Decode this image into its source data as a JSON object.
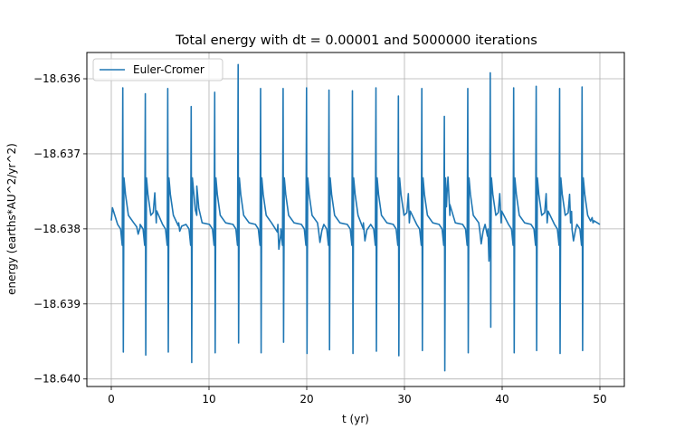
{
  "chart_data": {
    "type": "line",
    "title": "Total energy with dt = 0.00001 and 5000000 iterations",
    "xlabel": "t (yr)",
    "ylabel": "energy (earths*AU^2/yr^2)",
    "xlim": [
      -2.5,
      52.5
    ],
    "ylim": [
      -18.6401,
      -18.63565
    ],
    "xticks": [
      0,
      10,
      20,
      30,
      40,
      50
    ],
    "xtick_labels": [
      "0",
      "10",
      "20",
      "30",
      "40",
      "50"
    ],
    "yticks": [
      -18.636,
      -18.637,
      -18.638,
      -18.639,
      -18.64
    ],
    "ytick_labels": [
      "−18.636",
      "−18.637",
      "−18.638",
      "−18.639",
      "−18.640"
    ],
    "grid": true,
    "legend": {
      "location": "upper-left",
      "entries": [
        "Euler-Cromer"
      ]
    },
    "series": [
      {
        "name": "Euler-Cromer",
        "color": "#1f77b4",
        "x_start": 0,
        "x_end": 50,
        "start_value": -18.63789,
        "end_value": -18.63794,
        "baseline": -18.63792,
        "events": [
          {
            "t": 1.2,
            "max": -18.63612,
            "min": -18.63964
          },
          {
            "t": 3.5,
            "max": -18.6362,
            "min": -18.63968
          },
          {
            "t": 5.8,
            "max": -18.63613,
            "min": -18.63964
          },
          {
            "t": 8.2,
            "max": -18.63637,
            "min": -18.63978
          },
          {
            "t": 10.6,
            "max": -18.63618,
            "min": -18.63965
          },
          {
            "t": 13.0,
            "max": -18.63581,
            "min": -18.63952
          },
          {
            "t": 15.3,
            "max": -18.63613,
            "min": -18.63965
          },
          {
            "t": 17.6,
            "max": -18.63613,
            "min": -18.63951
          },
          {
            "t": 20.0,
            "max": -18.63612,
            "min": -18.63966
          },
          {
            "t": 22.3,
            "max": -18.63615,
            "min": -18.63961
          },
          {
            "t": 24.7,
            "max": -18.63616,
            "min": -18.63966
          },
          {
            "t": 27.1,
            "max": -18.63612,
            "min": -18.63963
          },
          {
            "t": 29.4,
            "max": -18.63623,
            "min": -18.63969
          },
          {
            "t": 31.8,
            "max": -18.63613,
            "min": -18.63962
          },
          {
            "t": 34.1,
            "max": -18.6365,
            "min": -18.63989
          },
          {
            "t": 36.5,
            "max": -18.63613,
            "min": -18.63965
          },
          {
            "t": 38.8,
            "max": -18.63592,
            "min": -18.63931
          },
          {
            "t": 41.2,
            "max": -18.63612,
            "min": -18.63965
          },
          {
            "t": 43.5,
            "max": -18.6361,
            "min": -18.63962
          },
          {
            "t": 45.9,
            "max": -18.63613,
            "min": -18.63966
          },
          {
            "t": 48.2,
            "max": -18.63611,
            "min": -18.63962
          }
        ],
        "shoulders": [
          {
            "t": 0.25,
            "value": -18.63757
          },
          {
            "t": 2.75,
            "value": -18.63807
          },
          {
            "t": 4.45,
            "value": -18.63752
          },
          {
            "t": 7.0,
            "value": -18.63803
          },
          {
            "t": 8.75,
            "value": -18.63743
          },
          {
            "t": 17.15,
            "value": -18.63827
          },
          {
            "t": 21.35,
            "value": -18.63818
          },
          {
            "t": 25.95,
            "value": -18.63816
          },
          {
            "t": 30.4,
            "value": -18.63753
          },
          {
            "t": 34.45,
            "value": -18.63731
          },
          {
            "t": 37.85,
            "value": -18.6382
          },
          {
            "t": 38.65,
            "value": -18.63843
          },
          {
            "t": 39.75,
            "value": -18.63753
          },
          {
            "t": 44.5,
            "value": -18.63753
          },
          {
            "t": 46.9,
            "value": -18.63754
          },
          {
            "t": 47.3,
            "value": -18.63816
          },
          {
            "t": 49.2,
            "value": -18.63785
          }
        ]
      }
    ]
  }
}
